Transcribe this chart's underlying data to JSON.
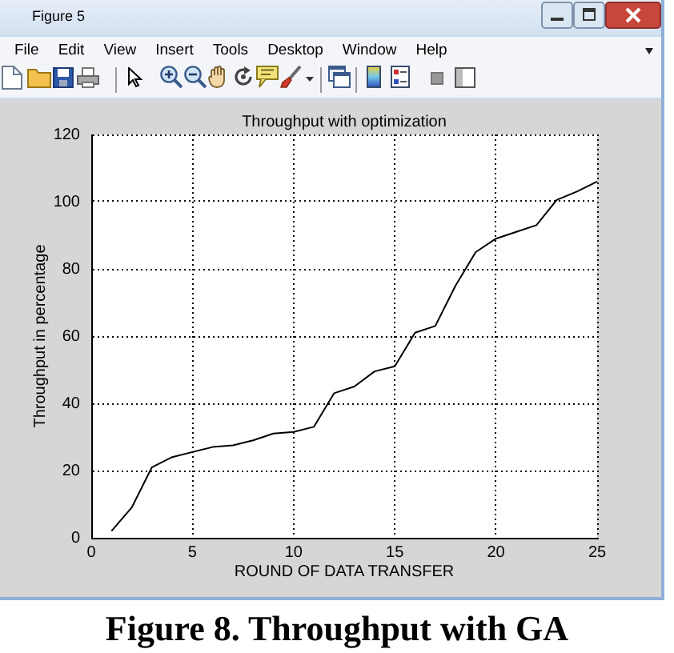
{
  "chart_data": {
    "type": "line",
    "title": "Throughput with optimization",
    "xlabel": "ROUND OF DATA TRANSFER",
    "ylabel": "Throughput in percentage",
    "x": [
      1,
      2,
      3,
      4,
      5,
      6,
      7,
      8,
      9,
      10,
      11,
      12,
      13,
      14,
      15,
      16,
      17,
      18,
      19,
      20,
      21,
      22,
      23,
      24,
      25
    ],
    "series": [
      {
        "color": "#000000",
        "values": [
          2,
          9,
          21,
          24,
          25.5,
          27,
          27.5,
          29,
          31,
          31.5,
          33,
          43,
          45,
          49.5,
          51,
          61,
          63,
          75,
          85,
          89,
          91,
          93,
          100.5,
          103,
          106
        ]
      }
    ],
    "xlim": [
      0,
      25
    ],
    "xticks": [
      0,
      5,
      10,
      15,
      20,
      25
    ],
    "ylim": [
      0,
      120
    ],
    "yticks": [
      0,
      20,
      40,
      60,
      80,
      100,
      120
    ],
    "grid": true,
    "marker": "none",
    "annotations": [
      "Figure 5",
      "File",
      "Edit",
      "View",
      "Insert",
      "Tools",
      "Desktop",
      "Window",
      "Help",
      "Figure 8. Throughput with GA"
    ]
  }
}
